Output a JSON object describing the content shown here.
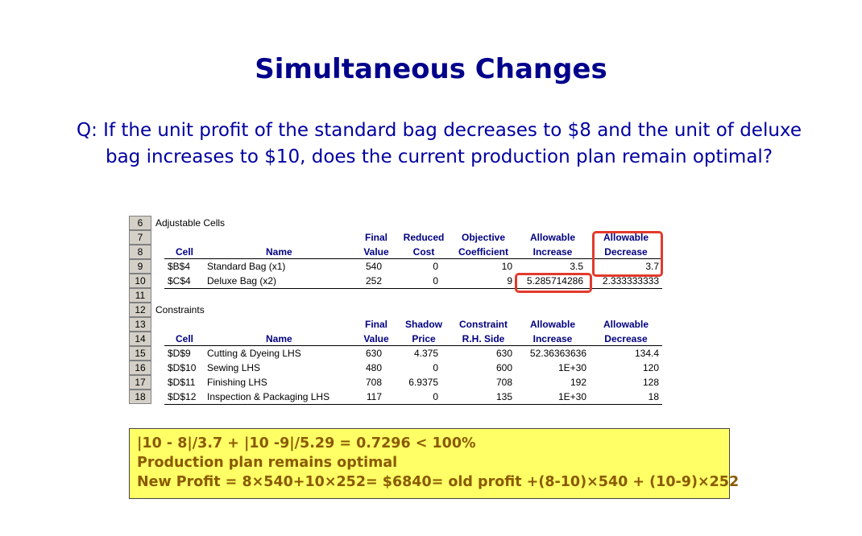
{
  "title": "Simultaneous Changes",
  "question_line1": "Q: If the unit profit of the standard bag decreases to $8 and the unit of deluxe",
  "question_line2": "bag increases to $10, does the current production plan remain optimal?",
  "sheet": {
    "row_numbers": [
      "6",
      "7",
      "8",
      "9",
      "10",
      "11",
      "12",
      "13",
      "14",
      "15",
      "16",
      "17",
      "18"
    ],
    "adjustable_label": "Adjustable Cells",
    "constraints_label": "Constraints",
    "adj_headers": {
      "cell": "Cell",
      "name": "Name",
      "final1": "Final",
      "final2": "Value",
      "reduced1": "Reduced",
      "reduced2": "Cost",
      "objective1": "Objective",
      "objective2": "Coefficient",
      "allow_inc1": "Allowable",
      "allow_inc2": "Increase",
      "allow_dec1": "Allowable",
      "allow_dec2": "Decrease"
    },
    "adj_rows": [
      {
        "cell": "$B$4",
        "name": "Standard Bag (x1)",
        "final": "540",
        "reduced": "0",
        "objective": "10",
        "inc": "3.5",
        "dec": "3.7"
      },
      {
        "cell": "$C$4",
        "name": "Deluxe Bag (x2)",
        "final": "252",
        "reduced": "0",
        "objective": "9",
        "inc": "5.285714286",
        "dec": "2.333333333"
      }
    ],
    "con_headers": {
      "cell": "Cell",
      "name": "Name",
      "final1": "Final",
      "final2": "Value",
      "shadow1": "Shadow",
      "shadow2": "Price",
      "constraint1": "Constraint",
      "constraint2": "R.H. Side",
      "allow_inc1": "Allowable",
      "allow_inc2": "Increase",
      "allow_dec1": "Allowable",
      "allow_dec2": "Decrease"
    },
    "con_rows": [
      {
        "cell": "$D$9",
        "name": "Cutting & Dyeing LHS",
        "final": "630",
        "shadow": "4.375",
        "rhs": "630",
        "inc": "52.36363636",
        "dec": "134.4"
      },
      {
        "cell": "$D$10",
        "name": "Sewing LHS",
        "final": "480",
        "shadow": "0",
        "rhs": "600",
        "inc": "1E+30",
        "dec": "120"
      },
      {
        "cell": "$D$11",
        "name": "Finishing LHS",
        "final": "708",
        "shadow": "6.9375",
        "rhs": "708",
        "inc": "192",
        "dec": "128"
      },
      {
        "cell": "$D$12",
        "name": "Inspection & Packaging LHS",
        "final": "117",
        "shadow": "0",
        "rhs": "135",
        "inc": "1E+30",
        "dec": "18"
      }
    ]
  },
  "note": {
    "line1": "|10 - 8|/3.7 + |10 -9|/5.29 = 0.7296 < 100%",
    "line2": "Production plan remains optimal",
    "line3": "New Profit = 8×540+10×252= $6840= old profit +(8-10)×540 + (10-9)×252"
  },
  "colors": {
    "title": "#00008b",
    "highlight_box": "#e23a2c",
    "note_bg": "#ffff66",
    "note_text": "#8a5a00"
  }
}
